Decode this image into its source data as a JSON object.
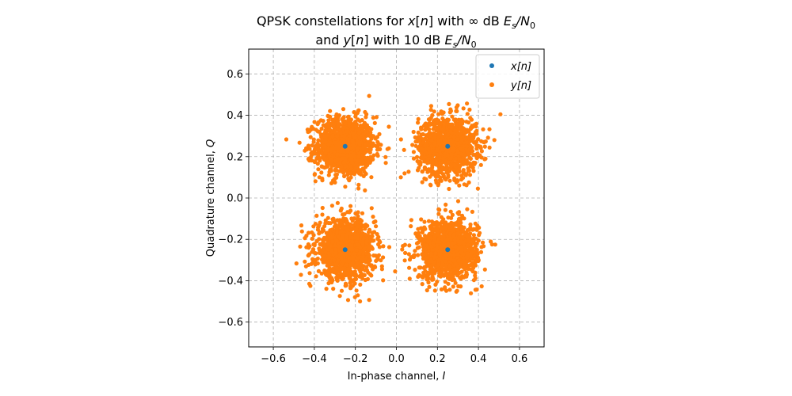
{
  "chart_data": {
    "type": "scatter",
    "title_line1": "QPSK constellations for x[n] with ∞ dB Es/N0",
    "title_line2": "and y[n] with 10 dB Es/N0",
    "xlabel": "In-phase channel, I",
    "ylabel": "Quadrature channel, Q",
    "xlim": [
      -0.72,
      0.72
    ],
    "ylim": [
      -0.72,
      0.72
    ],
    "xticks": [
      -0.6,
      -0.4,
      -0.2,
      0.0,
      0.2,
      0.4,
      0.6
    ],
    "yticks": [
      -0.6,
      -0.4,
      -0.2,
      0.0,
      0.2,
      0.4,
      0.6
    ],
    "xtick_labels": [
      "−0.6",
      "−0.4",
      "−0.2",
      "0.0",
      "0.2",
      "0.4",
      "0.6"
    ],
    "ytick_labels": [
      "−0.6",
      "−0.4",
      "−0.2",
      "0.0",
      "0.2",
      "0.4",
      "0.6"
    ],
    "grid": true,
    "legend_position": "top-right",
    "series": [
      {
        "name": "x[n]",
        "color": "#1f77b4",
        "points": [
          [
            -0.25,
            0.25
          ],
          [
            0.25,
            0.25
          ],
          [
            -0.25,
            -0.25
          ],
          [
            0.25,
            -0.25
          ]
        ]
      },
      {
        "name": "y[n]",
        "color": "#ff7f0e",
        "noise_std": 0.071,
        "cluster_centers": [
          [
            -0.25,
            0.25
          ],
          [
            0.25,
            0.25
          ],
          [
            -0.25,
            -0.25
          ],
          [
            0.25,
            -0.25
          ]
        ],
        "points_per_cluster": 1200
      }
    ]
  }
}
